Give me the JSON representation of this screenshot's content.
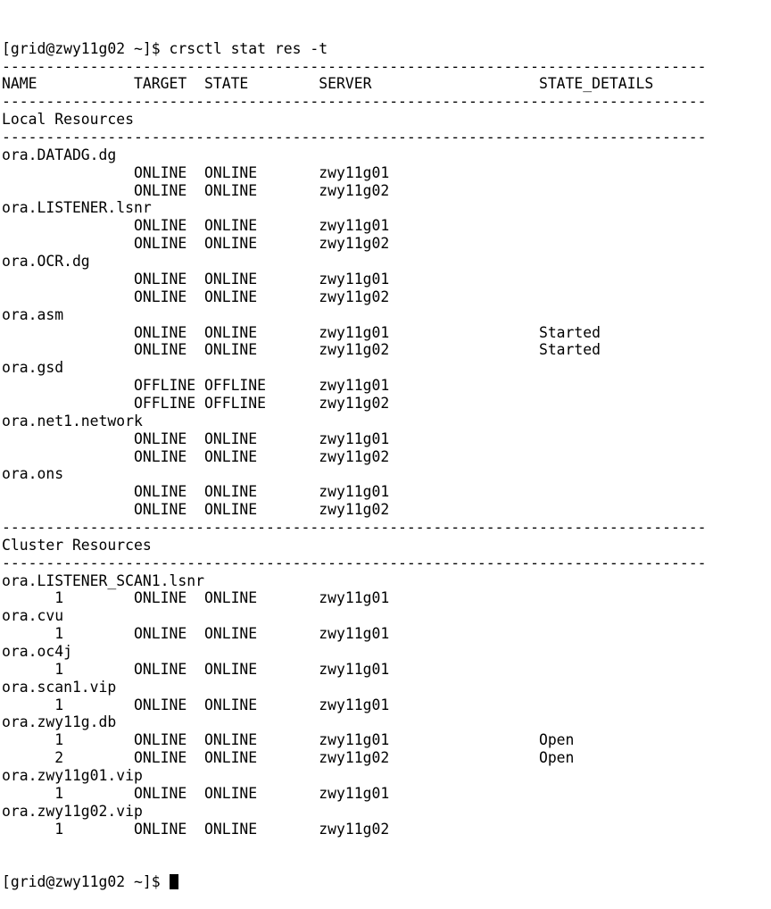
{
  "terminal": {
    "lines": [
      "[grid@zwy11g02 ~]$ crsctl stat res -t",
      "--------------------------------------------------------------------------------",
      "NAME           TARGET  STATE        SERVER                   STATE_DETAILS",
      "--------------------------------------------------------------------------------",
      "Local Resources",
      "--------------------------------------------------------------------------------",
      "ora.DATADG.dg",
      "               ONLINE  ONLINE       zwy11g01",
      "               ONLINE  ONLINE       zwy11g02",
      "ora.LISTENER.lsnr",
      "               ONLINE  ONLINE       zwy11g01",
      "               ONLINE  ONLINE       zwy11g02",
      "ora.OCR.dg",
      "               ONLINE  ONLINE       zwy11g01",
      "               ONLINE  ONLINE       zwy11g02",
      "ora.asm",
      "               ONLINE  ONLINE       zwy11g01                 Started",
      "               ONLINE  ONLINE       zwy11g02                 Started",
      "ora.gsd",
      "               OFFLINE OFFLINE      zwy11g01",
      "               OFFLINE OFFLINE      zwy11g02",
      "ora.net1.network",
      "               ONLINE  ONLINE       zwy11g01",
      "               ONLINE  ONLINE       zwy11g02",
      "ora.ons",
      "               ONLINE  ONLINE       zwy11g01",
      "               ONLINE  ONLINE       zwy11g02",
      "--------------------------------------------------------------------------------",
      "Cluster Resources",
      "--------------------------------------------------------------------------------",
      "ora.LISTENER_SCAN1.lsnr",
      "      1        ONLINE  ONLINE       zwy11g01",
      "ora.cvu",
      "      1        ONLINE  ONLINE       zwy11g01",
      "ora.oc4j",
      "      1        ONLINE  ONLINE       zwy11g01",
      "ora.scan1.vip",
      "      1        ONLINE  ONLINE       zwy11g01",
      "ora.zwy11g.db",
      "      1        ONLINE  ONLINE       zwy11g01                 Open",
      "      2        ONLINE  ONLINE       zwy11g02                 Open",
      "ora.zwy11g01.vip",
      "      1        ONLINE  ONLINE       zwy11g01",
      "ora.zwy11g02.vip",
      "      1        ONLINE  ONLINE       zwy11g02"
    ],
    "prompt": "[grid@zwy11g02 ~]$ "
  }
}
